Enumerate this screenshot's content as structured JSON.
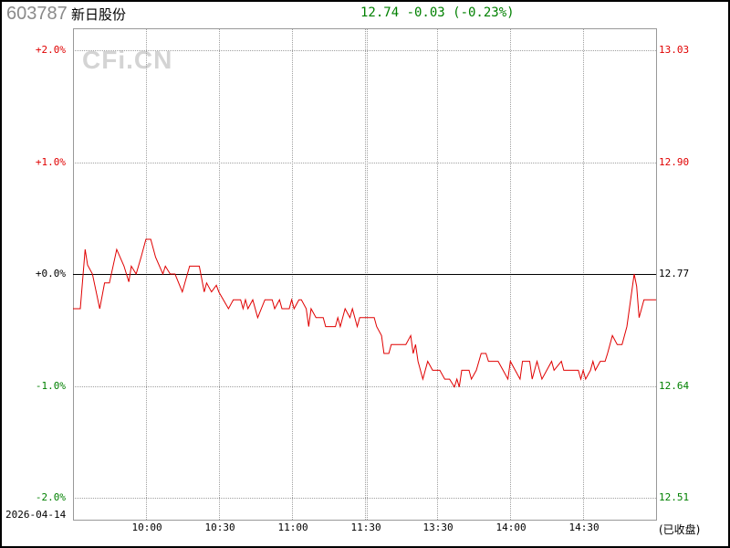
{
  "header": {
    "code": "603787",
    "name": "新日股份",
    "quote": "12.74 -0.03 (-0.23%)",
    "quote_color": "#008000"
  },
  "watermark": "CFi.CN",
  "date": "2026-04-14",
  "status": "(已收盘)",
  "colors": {
    "up": "#e00000",
    "down": "#008000",
    "line": "#e00000",
    "baseline": "#000000",
    "grid": "#a0a0a0"
  },
  "chart_data": {
    "type": "line",
    "prev_close": 12.77,
    "ylim_pct": [
      -2.0,
      2.0
    ],
    "left_ticks": [
      {
        "pct": 2.0,
        "label": "+2.0%"
      },
      {
        "pct": 1.0,
        "label": "+1.0%"
      },
      {
        "pct": 0.0,
        "label": "+0.0%"
      },
      {
        "pct": -1.0,
        "label": "-1.0%"
      },
      {
        "pct": -2.0,
        "label": "-2.0%"
      }
    ],
    "right_ticks": [
      {
        "pct": 2.0,
        "label": "13.03"
      },
      {
        "pct": 1.0,
        "label": "12.90"
      },
      {
        "pct": 0.0,
        "label": "12.77"
      },
      {
        "pct": -1.0,
        "label": "12.64"
      },
      {
        "pct": -2.0,
        "label": "12.51"
      }
    ],
    "x_ticks": [
      "10:00",
      "10:30",
      "11:00",
      "11:30",
      "13:30",
      "14:00",
      "14:30"
    ],
    "grid": true,
    "series": [
      {
        "points": [
          [
            "09:30",
            -0.31
          ],
          [
            "09:31",
            -0.31
          ],
          [
            "09:33",
            -0.31
          ],
          [
            "09:35",
            0.22
          ],
          [
            "09:36",
            0.08
          ],
          [
            "09:38",
            0
          ],
          [
            "09:41",
            -0.31
          ],
          [
            "09:43",
            -0.08
          ],
          [
            "09:45",
            -0.08
          ],
          [
            "09:48",
            0.22
          ],
          [
            "09:51",
            0.07
          ],
          [
            "09:53",
            -0.07
          ],
          [
            "09:54",
            0.07
          ],
          [
            "09:56",
            0
          ],
          [
            "09:58",
            0.15
          ],
          [
            "10:00",
            0.31
          ],
          [
            "10:02",
            0.31
          ],
          [
            "10:04",
            0.15
          ],
          [
            "10:07",
            0
          ],
          [
            "10:08",
            0.07
          ],
          [
            "10:10",
            0
          ],
          [
            "10:12",
            0
          ],
          [
            "10:15",
            -0.16
          ],
          [
            "10:18",
            0.07
          ],
          [
            "10:22",
            0.07
          ],
          [
            "10:24",
            -0.16
          ],
          [
            "10:25",
            -0.08
          ],
          [
            "10:27",
            -0.16
          ],
          [
            "10:29",
            -0.1
          ],
          [
            "10:30",
            -0.16
          ],
          [
            "10:34",
            -0.31
          ],
          [
            "10:36",
            -0.23
          ],
          [
            "10:39",
            -0.23
          ],
          [
            "10:40",
            -0.31
          ],
          [
            "10:41",
            -0.23
          ],
          [
            "10:42",
            -0.31
          ],
          [
            "10:44",
            -0.23
          ],
          [
            "10:46",
            -0.39
          ],
          [
            "10:49",
            -0.23
          ],
          [
            "10:52",
            -0.23
          ],
          [
            "10:53",
            -0.31
          ],
          [
            "10:55",
            -0.23
          ],
          [
            "10:56",
            -0.31
          ],
          [
            "10:59",
            -0.31
          ],
          [
            "11:00",
            -0.23
          ],
          [
            "11:01",
            -0.31
          ],
          [
            "11:03",
            -0.23
          ],
          [
            "11:04",
            -0.23
          ],
          [
            "11:06",
            -0.31
          ],
          [
            "11:07",
            -0.47
          ],
          [
            "11:08",
            -0.31
          ],
          [
            "11:10",
            -0.39
          ],
          [
            "11:13",
            -0.39
          ],
          [
            "11:14",
            -0.47
          ],
          [
            "11:18",
            -0.47
          ],
          [
            "11:19",
            -0.39
          ],
          [
            "11:20",
            -0.47
          ],
          [
            "11:22",
            -0.31
          ],
          [
            "11:24",
            -0.39
          ],
          [
            "11:25",
            -0.31
          ],
          [
            "11:27",
            -0.47
          ],
          [
            "11:28",
            -0.39
          ],
          [
            "11:30",
            -0.39
          ],
          [
            "13:04",
            -0.39
          ],
          [
            "13:05",
            -0.47
          ],
          [
            "13:07",
            -0.55
          ],
          [
            "13:08",
            -0.71
          ],
          [
            "13:10",
            -0.71
          ],
          [
            "13:11",
            -0.63
          ],
          [
            "13:17",
            -0.63
          ],
          [
            "13:19",
            -0.55
          ],
          [
            "13:20",
            -0.71
          ],
          [
            "13:21",
            -0.63
          ],
          [
            "13:22",
            -0.78
          ],
          [
            "13:24",
            -0.94
          ],
          [
            "13:26",
            -0.78
          ],
          [
            "13:28",
            -0.86
          ],
          [
            "13:31",
            -0.86
          ],
          [
            "13:33",
            -0.94
          ],
          [
            "13:35",
            -0.94
          ],
          [
            "13:37",
            -1.01
          ],
          [
            "13:38",
            -0.94
          ],
          [
            "13:39",
            -1.01
          ],
          [
            "13:40",
            -0.86
          ],
          [
            "13:43",
            -0.86
          ],
          [
            "13:44",
            -0.94
          ],
          [
            "13:46",
            -0.86
          ],
          [
            "13:48",
            -0.71
          ],
          [
            "13:50",
            -0.71
          ],
          [
            "13:51",
            -0.78
          ],
          [
            "13:55",
            -0.78
          ],
          [
            "13:57",
            -0.86
          ],
          [
            "13:59",
            -0.94
          ],
          [
            "14:00",
            -0.78
          ],
          [
            "14:02",
            -0.86
          ],
          [
            "14:04",
            -0.94
          ],
          [
            "14:05",
            -0.78
          ],
          [
            "14:08",
            -0.78
          ],
          [
            "14:09",
            -0.94
          ],
          [
            "14:11",
            -0.78
          ],
          [
            "14:13",
            -0.94
          ],
          [
            "14:15",
            -0.86
          ],
          [
            "14:17",
            -0.78
          ],
          [
            "14:18",
            -0.86
          ],
          [
            "14:21",
            -0.78
          ],
          [
            "14:22",
            -0.86
          ],
          [
            "14:28",
            -0.86
          ],
          [
            "14:29",
            -0.94
          ],
          [
            "14:30",
            -0.86
          ],
          [
            "14:31",
            -0.94
          ],
          [
            "14:33",
            -0.86
          ],
          [
            "14:34",
            -0.78
          ],
          [
            "14:35",
            -0.86
          ],
          [
            "14:37",
            -0.78
          ],
          [
            "14:39",
            -0.78
          ],
          [
            "14:40",
            -0.71
          ],
          [
            "14:42",
            -0.55
          ],
          [
            "14:44",
            -0.63
          ],
          [
            "14:46",
            -0.63
          ],
          [
            "14:48",
            -0.47
          ],
          [
            "14:51",
            0.0
          ],
          [
            "14:52",
            -0.11
          ],
          [
            "14:53",
            -0.39
          ],
          [
            "14:55",
            -0.23
          ],
          [
            "15:00",
            -0.23
          ]
        ]
      }
    ]
  }
}
